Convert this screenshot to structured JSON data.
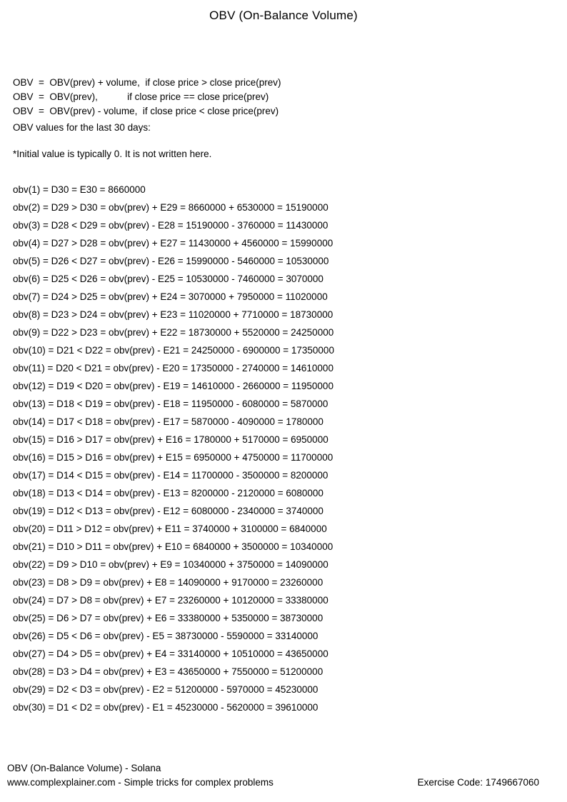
{
  "title": "OBV (On-Balance Volume)",
  "formulas": [
    "OBV  =  OBV(prev) + volume,  if close price > close price(prev)",
    "OBV  =  OBV(prev),           if close price == close price(prev)",
    "OBV  =  OBV(prev) - volume,  if close price < close price(prev)"
  ],
  "note": "*Initial value is typically 0. It is not written here.",
  "intro": "OBV values for the last 30 days:",
  "obv_lines": [
    "obv(1) = D30 = E30 = 8660000",
    "obv(2) = D29 > D30 = obv(prev) + E29 = 8660000 + 6530000 = 15190000",
    "obv(3) = D28 < D29 = obv(prev) - E28 = 15190000 - 3760000 = 11430000",
    "obv(4) = D27 > D28 = obv(prev) + E27 = 11430000 + 4560000 = 15990000",
    "obv(5) = D26 < D27 = obv(prev) - E26 = 15990000 - 5460000 = 10530000",
    "obv(6) = D25 < D26 = obv(prev) - E25 = 10530000 - 7460000 = 3070000",
    "obv(7) = D24 > D25 = obv(prev) + E24 = 3070000 + 7950000 = 11020000",
    "obv(8) = D23 > D24 = obv(prev) + E23 = 11020000 + 7710000 = 18730000",
    "obv(9) = D22 > D23 = obv(prev) + E22 = 18730000 + 5520000 = 24250000",
    "obv(10) = D21 < D22 = obv(prev) - E21 = 24250000 - 6900000 = 17350000",
    "obv(11) = D20 < D21 = obv(prev) - E20 = 17350000 - 2740000 = 14610000",
    "obv(12) = D19 < D20 = obv(prev) - E19 = 14610000 - 2660000 = 11950000",
    "obv(13) = D18 < D19 = obv(prev) - E18 = 11950000 - 6080000 = 5870000",
    "obv(14) = D17 < D18 = obv(prev) - E17 = 5870000 - 4090000 = 1780000",
    "obv(15) = D16 > D17 = obv(prev) + E16 = 1780000 + 5170000 = 6950000",
    "obv(16) = D15 > D16 = obv(prev) + E15 = 6950000 + 4750000 = 11700000",
    "obv(17) = D14 < D15 = obv(prev) - E14 = 11700000 - 3500000 = 8200000",
    "obv(18) = D13 < D14 = obv(prev) - E13 = 8200000 - 2120000 = 6080000",
    "obv(19) = D12 < D13 = obv(prev) - E12 = 6080000 - 2340000 = 3740000",
    "obv(20) = D11 > D12 = obv(prev) + E11 = 3740000 + 3100000 = 6840000",
    "obv(21) = D10 > D11 = obv(prev) + E10 = 6840000 + 3500000 = 10340000",
    "obv(22) = D9 > D10 = obv(prev) + E9 = 10340000 + 3750000 = 14090000",
    "obv(23) = D8 > D9 = obv(prev) + E8 = 14090000 + 9170000 = 23260000",
    "obv(24) = D7 > D8 = obv(prev) + E7 = 23260000 + 10120000 = 33380000",
    "obv(25) = D6 > D7 = obv(prev) + E6 = 33380000 + 5350000 = 38730000",
    "obv(26) = D5 < D6 = obv(prev) - E5 = 38730000 - 5590000 = 33140000",
    "obv(27) = D4 > D5 = obv(prev) + E4 = 33140000 + 10510000 = 43650000",
    "obv(28) = D3 > D4 = obv(prev) + E3 = 43650000 + 7550000 = 51200000",
    "obv(29) = D2 < D3 = obv(prev) - E2 = 51200000 - 5970000 = 45230000",
    "obv(30) = D1 < D2 = obv(prev) - E1 = 45230000 - 5620000 = 39610000"
  ],
  "footer": {
    "line1": "OBV (On-Balance Volume) - Solana",
    "line2": "www.complexplainer.com - Simple tricks for complex problems",
    "exercise_code": "Exercise Code: 1749667060"
  },
  "colors": {
    "background": "#ffffff",
    "text": "#000000"
  }
}
